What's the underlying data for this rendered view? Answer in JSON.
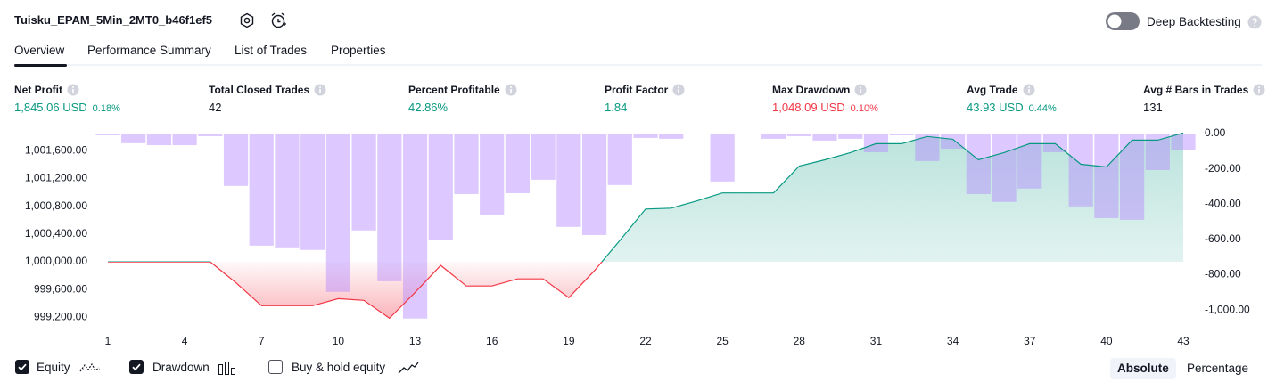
{
  "header": {
    "title": "Tuisku_EPAM_5Min_2MT0_b46f1ef5",
    "deep_backtesting": "Deep Backtesting"
  },
  "tabs": [
    "Overview",
    "Performance Summary",
    "List of Trades",
    "Properties"
  ],
  "metrics": [
    {
      "label": "Net Profit",
      "value": "1,845.06 USD",
      "percent": "0.18%"
    },
    {
      "label": "Total Closed Trades",
      "value": "42"
    },
    {
      "label": "Percent Profitable",
      "value": "42.86%"
    },
    {
      "label": "Profit Factor",
      "value": "1.84"
    },
    {
      "label": "Max Drawdown",
      "value": "1,048.09 USD",
      "percent": "0.10%"
    },
    {
      "label": "Avg Trade",
      "value": "43.93 USD",
      "percent": "0.44%"
    },
    {
      "label": "Avg # Bars in Trades",
      "value": "131"
    }
  ],
  "chart_data": {
    "type": "line",
    "x": [
      1,
      2,
      3,
      4,
      5,
      6,
      7,
      8,
      9,
      10,
      11,
      12,
      13,
      14,
      15,
      16,
      17,
      18,
      19,
      20,
      21,
      22,
      23,
      24,
      25,
      26,
      27,
      28,
      29,
      30,
      31,
      32,
      33,
      34,
      35,
      36,
      37,
      38,
      39,
      40,
      41,
      42,
      43
    ],
    "xlim": [
      0.5,
      43.5
    ],
    "xticks": [
      1,
      4,
      7,
      10,
      13,
      16,
      19,
      22,
      25,
      28,
      31,
      34,
      37,
      40,
      43
    ],
    "ylim": [
      999000,
      1001900
    ],
    "yticks": [
      {
        "value": 999200,
        "label": "999,200.00"
      },
      {
        "value": 999600,
        "label": "999,600.00"
      },
      {
        "value": 1000000,
        "label": "1,000,000.00"
      },
      {
        "value": 1000400,
        "label": "1,000,400.00"
      },
      {
        "value": 1000800,
        "label": "1,000,800.00"
      },
      {
        "value": 1001200,
        "label": "1,001,200.00"
      },
      {
        "value": 1001600,
        "label": "1,001,600.00"
      }
    ],
    "y2lim": [
      -1120,
      20
    ],
    "y2ticks": [
      {
        "value": -1000,
        "label": "-1,000.00"
      },
      {
        "value": -800,
        "label": "-800.00"
      },
      {
        "value": -600,
        "label": "-600.00"
      },
      {
        "value": -400,
        "label": "-400.00"
      },
      {
        "value": -200,
        "label": "-200.00"
      },
      {
        "value": 0,
        "label": "0.00"
      }
    ],
    "series": [
      {
        "name": "Equity",
        "visible": true,
        "color": "#089981",
        "negative_color": "#f23645",
        "values": [
          1000000,
          1000000,
          1000000,
          1000000,
          1000000,
          999700,
          999368,
          999368,
          999368,
          999470,
          999445,
          999187,
          999561,
          999948,
          999652,
          999652,
          999755,
          999755,
          999484,
          999871,
          1000310,
          1000761,
          1000774,
          1000877,
          1000993,
          1000993,
          1000993,
          1001380,
          1001470,
          1001574,
          1001703,
          1001703,
          1001806,
          1001767,
          1001470,
          1001574,
          1001703,
          1001703,
          1001406,
          1001367,
          1001754,
          1001754,
          1001858
        ]
      },
      {
        "name": "Drawdown",
        "visible": true,
        "color": "#b388ff",
        "axis": "y2",
        "values": [
          -10,
          -55,
          -66,
          -66,
          -15,
          -297,
          -635,
          -645,
          -660,
          -897,
          -549,
          -837,
          -1048,
          -605,
          -343,
          -459,
          -338,
          -262,
          -529,
          -575,
          -292,
          -25,
          -30,
          0,
          -272,
          0,
          -30,
          -15,
          -40,
          -30,
          -106,
          -10,
          -156,
          -86,
          -343,
          -388,
          -312,
          -106,
          -413,
          -479,
          -489,
          -207,
          -96
        ]
      }
    ]
  },
  "controls": {
    "buy_hold": {
      "label": "Buy & hold equity",
      "checked": false
    },
    "modes": [
      "Absolute",
      "Percentage"
    ]
  }
}
